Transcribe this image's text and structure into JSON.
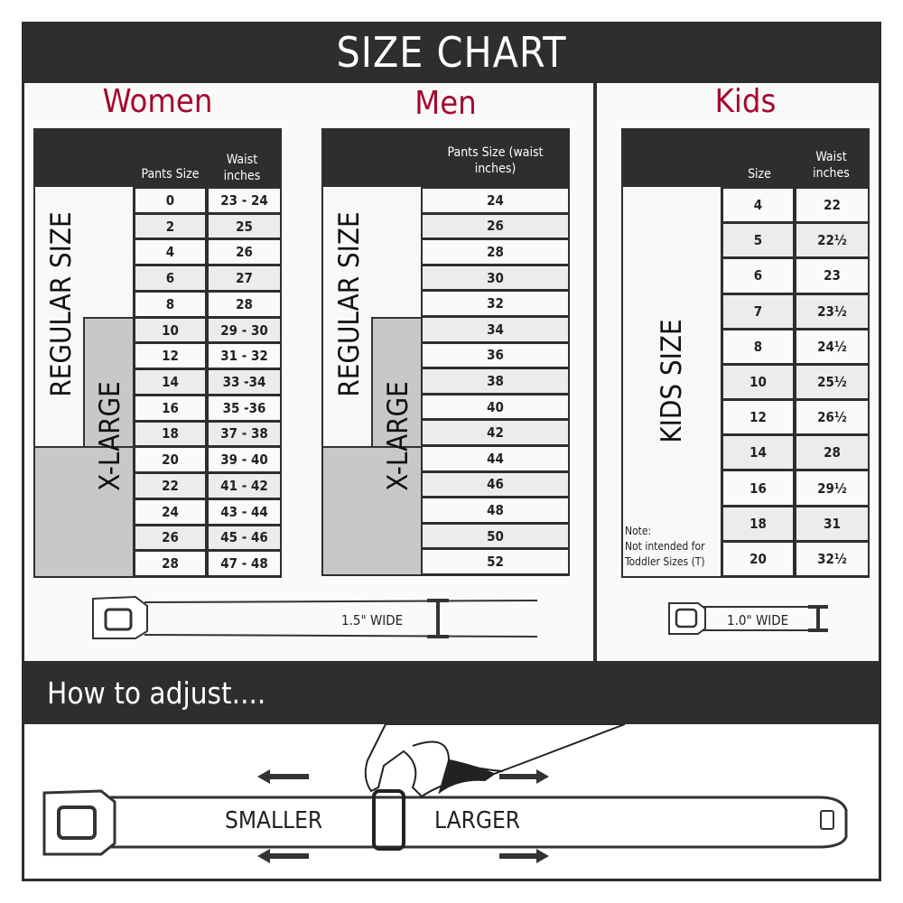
{
  "title": "SIZE CHART",
  "women": {
    "heading": "Women",
    "col_pants": "Pants Size",
    "col_waist": "Waist inches",
    "regular_label": "REGULAR SIZE",
    "xlarge_label": "X-LARGE",
    "rows": [
      [
        "0",
        "23 - 24"
      ],
      [
        "2",
        "25"
      ],
      [
        "4",
        "26"
      ],
      [
        "6",
        "27"
      ],
      [
        "8",
        "28"
      ],
      [
        "10",
        "29 - 30"
      ],
      [
        "12",
        "31 - 32"
      ],
      [
        "14",
        "33 -34"
      ],
      [
        "16",
        "35 -36"
      ],
      [
        "18",
        "37 - 38"
      ],
      [
        "20",
        "39 - 40"
      ],
      [
        "22",
        "41 - 42"
      ],
      [
        "24",
        "43 - 44"
      ],
      [
        "26",
        "45 - 46"
      ],
      [
        "28",
        "47 - 48"
      ]
    ],
    "belt_width": "1.5\" WIDE"
  },
  "men": {
    "heading": "Men",
    "col_pants": "Pants Size (waist inches)",
    "regular_label": "REGULAR SIZE",
    "xlarge_label": "X-LARGE",
    "rows": [
      [
        "24"
      ],
      [
        "26"
      ],
      [
        "28"
      ],
      [
        "30"
      ],
      [
        "32"
      ],
      [
        "34"
      ],
      [
        "36"
      ],
      [
        "38"
      ],
      [
        "40"
      ],
      [
        "42"
      ],
      [
        "44"
      ],
      [
        "46"
      ],
      [
        "48"
      ],
      [
        "50"
      ],
      [
        "52"
      ]
    ]
  },
  "kids": {
    "heading": "Kids",
    "col_size": "Size",
    "col_waist": "Waist inches",
    "kids_label": "KIDS SIZE",
    "note_title": "Note:",
    "note_line1": "Not intended for",
    "note_line2": "Toddler Sizes (T)",
    "rows": [
      [
        "4",
        "22"
      ],
      [
        "5",
        "22½"
      ],
      [
        "6",
        "23"
      ],
      [
        "7",
        "23½"
      ],
      [
        "8",
        "24½"
      ],
      [
        "10",
        "25½"
      ],
      [
        "12",
        "26½"
      ],
      [
        "14",
        "28"
      ],
      [
        "16",
        "29½"
      ],
      [
        "18",
        "31"
      ],
      [
        "20",
        "32½"
      ]
    ],
    "belt_width": "1.0\" WIDE"
  },
  "adjust": {
    "heading": "How to adjust....",
    "smaller": "SMALLER",
    "larger": "LARGER"
  },
  "colors": {
    "heading_red": "#a5082e",
    "dark": "#2e2e2e",
    "xlarge_gray": "#c8c8c8"
  }
}
